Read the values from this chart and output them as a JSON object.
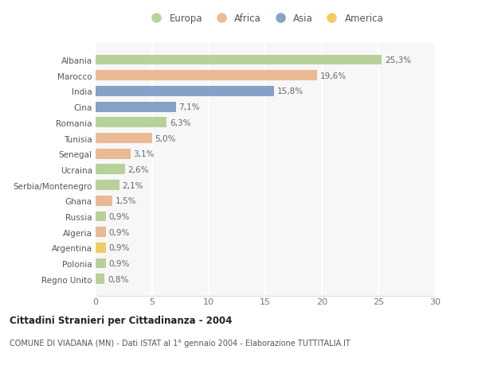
{
  "categories": [
    "Albania",
    "Marocco",
    "India",
    "Cina",
    "Romania",
    "Tunisia",
    "Senegal",
    "Ucraina",
    "Serbia/Montenegro",
    "Ghana",
    "Russia",
    "Algeria",
    "Argentina",
    "Polonia",
    "Regno Unito"
  ],
  "values": [
    25.3,
    19.6,
    15.8,
    7.1,
    6.3,
    5.0,
    3.1,
    2.6,
    2.1,
    1.5,
    0.9,
    0.9,
    0.9,
    0.9,
    0.8
  ],
  "labels": [
    "25,3%",
    "19,6%",
    "15,8%",
    "7,1%",
    "6,3%",
    "5,0%",
    "3,1%",
    "2,6%",
    "2,1%",
    "1,5%",
    "0,9%",
    "0,9%",
    "0,9%",
    "0,9%",
    "0,8%"
  ],
  "continents": [
    "Europa",
    "Africa",
    "Asia",
    "Asia",
    "Europa",
    "Africa",
    "Africa",
    "Europa",
    "Europa",
    "Africa",
    "Europa",
    "Africa",
    "America",
    "Europa",
    "Europa"
  ],
  "continent_colors": {
    "Europa": "#a8c882",
    "Africa": "#e8aa7a",
    "Asia": "#6b8cba",
    "America": "#f0c040"
  },
  "legend_order": [
    "Europa",
    "Africa",
    "Asia",
    "America"
  ],
  "title": "Cittadini Stranieri per Cittadinanza - 2004",
  "subtitle": "COMUNE DI VIADANA (MN) - Dati ISTAT al 1° gennaio 2004 - Elaborazione TUTTITALIA.IT",
  "xlim": [
    0,
    30
  ],
  "xticks": [
    0,
    5,
    10,
    15,
    20,
    25,
    30
  ],
  "background_color": "#ffffff",
  "plot_bg_color": "#f7f7f7",
  "grid_color": "#ffffff",
  "bar_alpha": 0.8
}
